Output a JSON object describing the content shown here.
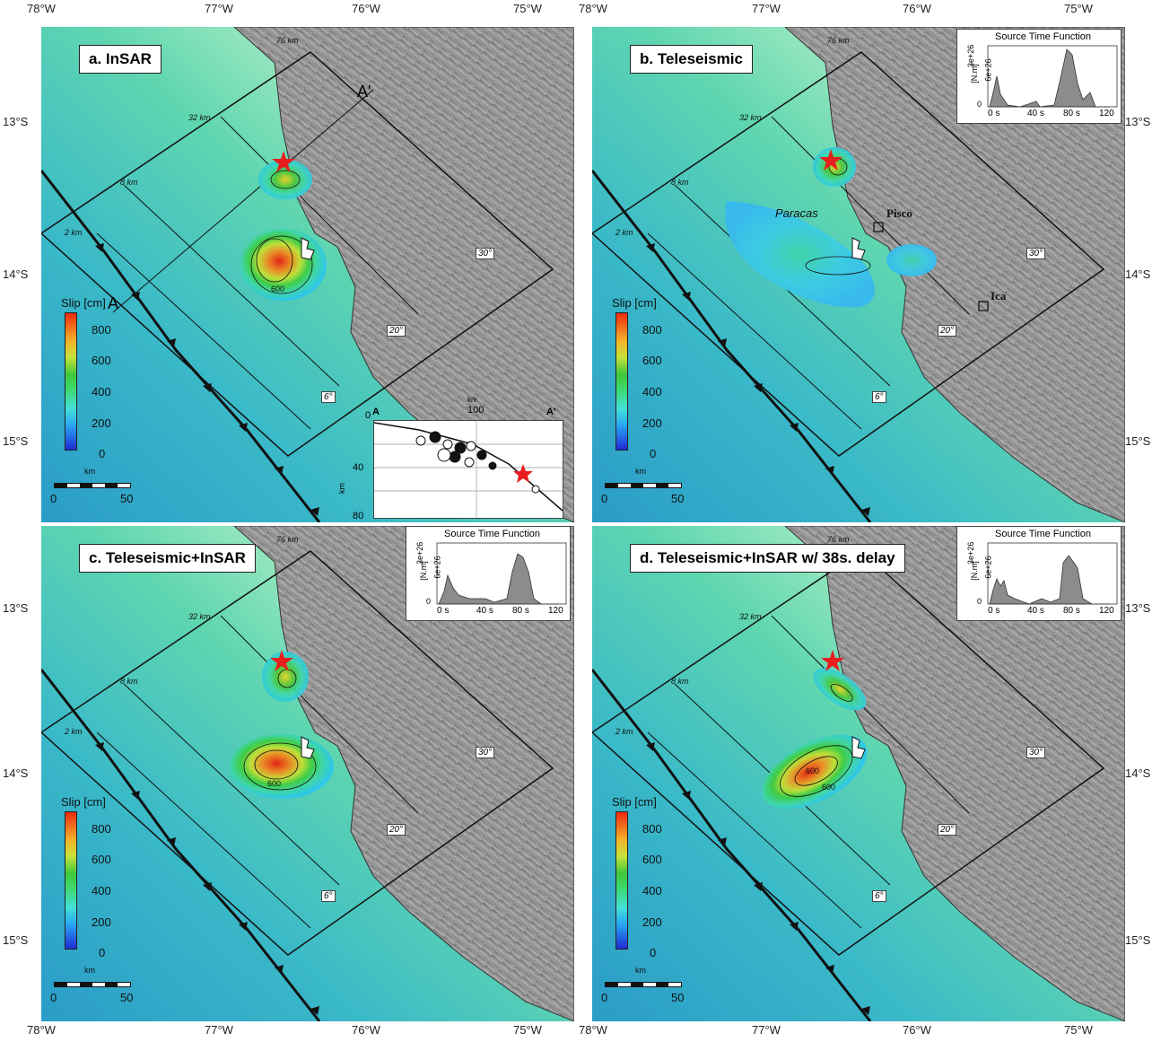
{
  "top_axis": {
    "labels": [
      "78°W",
      "77°W",
      "76°W",
      "75°W"
    ]
  },
  "bottom_axis": {
    "labels": [
      "78°W",
      "77°W",
      "76°W",
      "75°W"
    ]
  },
  "left_axis": {
    "labels": [
      "13°S",
      "14°S",
      "15°S"
    ]
  },
  "right_axis": {
    "labels": [
      "13°S",
      "14°S",
      "15°S"
    ]
  },
  "panels": [
    {
      "title": "a. InSAR"
    },
    {
      "title": "b. Teleseismic"
    },
    {
      "title": "c. Teleseismic+InSAR"
    },
    {
      "title": "d. Teleseismic+InSAR w/ 38s. delay"
    }
  ],
  "colorbar": {
    "title": "Slip [cm]",
    "ticks": [
      "800",
      "600",
      "400",
      "200",
      "0"
    ]
  },
  "scale_bar": {
    "unit": "km",
    "start": "0",
    "end": "50"
  },
  "depth_labels": [
    "76 km",
    "32 km",
    "8 km",
    "2 km"
  ],
  "dip_labels": [
    "30°",
    "20°",
    "6°"
  ],
  "contour_label": "600",
  "profile": {
    "start": "A",
    "end": "A'",
    "x_unit": "km",
    "x_ticks": [
      "0",
      "100"
    ],
    "y_unit": "km",
    "y_ticks": [
      "40",
      "80"
    ]
  },
  "cities": {
    "pisco": "Pisco",
    "ica": "Ica",
    "paracas": "Paracas"
  },
  "stf": {
    "title": "Source Time Function",
    "ylabel": "[N.m]",
    "yticks": [
      "0",
      "3e+26",
      "6e+26"
    ],
    "xticks": [
      "0 s",
      "40 s",
      "80 s",
      "120"
    ],
    "xticks_b": [
      "0 s",
      "40 s",
      "80 s",
      "120"
    ]
  }
}
